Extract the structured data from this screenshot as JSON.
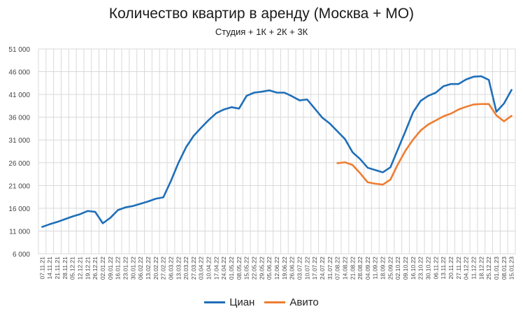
{
  "chart_data": {
    "type": "line",
    "title": "Количество квартир в аренду (Москва + МО)",
    "subtitle": "Студия + 1К + 2К + 3К",
    "xlabel": "",
    "ylabel": "",
    "ylim": [
      6000,
      51000
    ],
    "yticks": [
      6000,
      11000,
      16000,
      21000,
      26000,
      31000,
      36000,
      41000,
      46000,
      51000
    ],
    "ytick_labels": [
      "6 000",
      "11 000",
      "16 000",
      "21 000",
      "26 000",
      "31 000",
      "36 000",
      "41 000",
      "46 000",
      "51 000"
    ],
    "grid": true,
    "legend": "bottom",
    "categories": [
      "07.11.21",
      "14.11.21",
      "21.11.21",
      "28.11.21",
      "05.12.21",
      "12.12.21",
      "19.12.21",
      "26.12.21",
      "02.01.22",
      "09.01.22",
      "16.01.22",
      "23.01.22",
      "30.01.22",
      "06.02.22",
      "13.02.22",
      "20.02.22",
      "27.02.22",
      "06.03.22",
      "13.03.22",
      "20.03.22",
      "27.03.22",
      "03.04.22",
      "10.04.22",
      "17.04.22",
      "24.04.22",
      "01.05.22",
      "08.05.22",
      "15.05.22",
      "22.05.22",
      "29.05.22",
      "05.06.22",
      "12.06.22",
      "19.06.22",
      "26.06.22",
      "03.07.22",
      "10.07.22",
      "17.07.22",
      "24.07.22",
      "31.07.22",
      "07.08.22",
      "14.08.22",
      "21.08.22",
      "28.08.22",
      "04.09.22",
      "11.09.22",
      "18.09.22",
      "25.09.22",
      "02.10.22",
      "09.10.22",
      "16.10.22",
      "23.10.22",
      "30.10.22",
      "06.11.22",
      "13.11.22",
      "20.11.22",
      "27.11.22",
      "04.12.22",
      "11.12.22",
      "18.12.22",
      "25.12.22",
      "01.01.23",
      "08.01.23",
      "15.01.23"
    ],
    "series": [
      {
        "name": "Циан",
        "color": "#1f6fb8",
        "values": [
          11900,
          12500,
          13000,
          13600,
          14200,
          14700,
          15400,
          15200,
          12700,
          13900,
          15600,
          16200,
          16500,
          17000,
          17500,
          18100,
          18400,
          22000,
          26000,
          29400,
          31900,
          33700,
          35400,
          36900,
          37700,
          38200,
          37900,
          40700,
          41400,
          41600,
          41900,
          41400,
          41400,
          40600,
          39700,
          39900,
          37900,
          35900,
          34600,
          32900,
          31200,
          28300,
          26800,
          24900,
          24400,
          23900,
          25000,
          29000,
          33000,
          37100,
          39600,
          40700,
          41400,
          42800,
          43300,
          43300,
          44300,
          44900,
          45000,
          44200,
          37200,
          39000,
          42000
        ]
      },
      {
        "name": "Авито",
        "color": "#ee7d31",
        "values": [
          null,
          null,
          null,
          null,
          null,
          null,
          null,
          null,
          null,
          null,
          null,
          null,
          null,
          null,
          null,
          null,
          null,
          null,
          null,
          null,
          null,
          null,
          null,
          null,
          null,
          null,
          null,
          null,
          null,
          null,
          null,
          null,
          null,
          null,
          null,
          null,
          null,
          null,
          null,
          25900,
          26100,
          25500,
          23700,
          21700,
          21400,
          21200,
          22300,
          25700,
          28700,
          31100,
          33100,
          34400,
          35300,
          36200,
          36800,
          37700,
          38300,
          38800,
          38900,
          38900,
          36400,
          35100,
          36300
        ]
      }
    ]
  }
}
